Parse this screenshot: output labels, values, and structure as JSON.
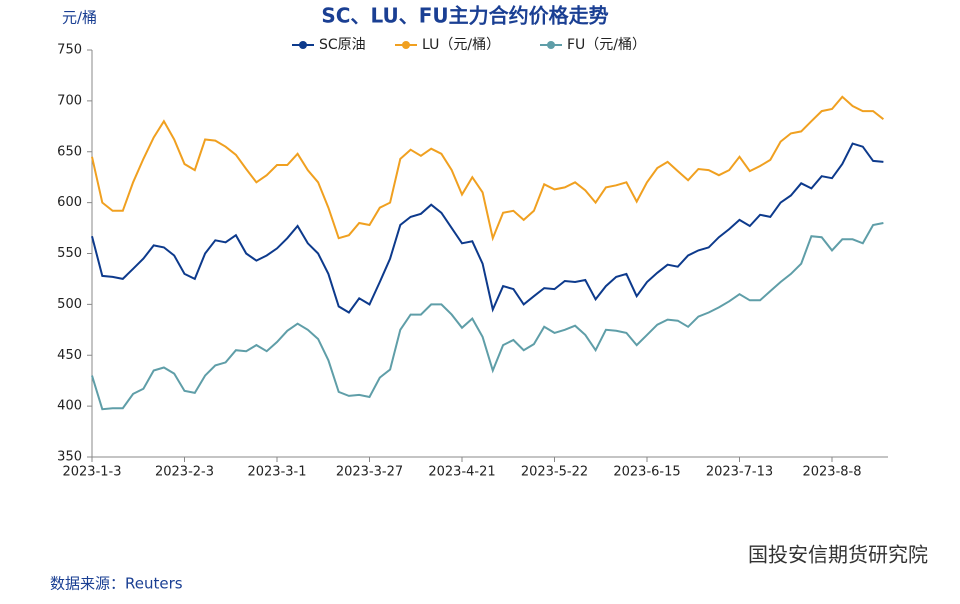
{
  "chart_data": {
    "type": "line",
    "title": "SC、LU、FU主力合约价格走势",
    "y_label": "元/桶",
    "source": "数据来源：Reuters",
    "watermark": "国投安信期货研究院",
    "categories": [
      "2023-1-3",
      null,
      null,
      null,
      null,
      null,
      null,
      null,
      null,
      "2023-2-3",
      null,
      null,
      null,
      null,
      null,
      null,
      null,
      null,
      "2023-3-1",
      null,
      null,
      null,
      null,
      null,
      null,
      null,
      null,
      "2023-3-27",
      null,
      null,
      null,
      null,
      null,
      null,
      null,
      null,
      "2023-4-21",
      null,
      null,
      null,
      null,
      null,
      null,
      null,
      null,
      "2023-5-22",
      null,
      null,
      null,
      null,
      null,
      null,
      null,
      null,
      "2023-6-15",
      null,
      null,
      null,
      null,
      null,
      null,
      null,
      null,
      "2023-7-13",
      null,
      null,
      null,
      null,
      null,
      null,
      null,
      null,
      "2023-8-8",
      null,
      null,
      null,
      null,
      null
    ],
    "ylim": [
      350,
      750
    ],
    "yticks": [
      350,
      400,
      450,
      500,
      550,
      600,
      650,
      700,
      750
    ],
    "grid": false,
    "legend": "top",
    "series": [
      {
        "name": "SC原油",
        "color": "#0d3a8c",
        "values": [
          567,
          528,
          527,
          525,
          535,
          545,
          558,
          556,
          548,
          530,
          525,
          550,
          563,
          561,
          568,
          550,
          543,
          548,
          555,
          565,
          577,
          560,
          550,
          530,
          498,
          492,
          506,
          500,
          522,
          545,
          578,
          586,
          589,
          598,
          590,
          575,
          560,
          562,
          540,
          495,
          518,
          515,
          500,
          508,
          516,
          515,
          523,
          522,
          524,
          505,
          518,
          527,
          530,
          508,
          522,
          531,
          539,
          537,
          548,
          553,
          556,
          566,
          574,
          583,
          577,
          588,
          586,
          600,
          607,
          619,
          614,
          626,
          624,
          638,
          658,
          655,
          641,
          640
        ]
      },
      {
        "name": "LU（元/桶）",
        "color": "#f0a020",
        "values": [
          645,
          600,
          592,
          592,
          620,
          643,
          664,
          680,
          662,
          638,
          632,
          662,
          661,
          655,
          647,
          633,
          620,
          627,
          637,
          637,
          648,
          632,
          620,
          595,
          565,
          568,
          580,
          578,
          595,
          600,
          643,
          652,
          646,
          653,
          648,
          632,
          608,
          625,
          610,
          565,
          590,
          592,
          583,
          592,
          618,
          613,
          615,
          620,
          612,
          600,
          615,
          617,
          620,
          601,
          620,
          634,
          640,
          631,
          622,
          633,
          632,
          627,
          632,
          645,
          631,
          636,
          642,
          660,
          668,
          670,
          680,
          690,
          692,
          704,
          695,
          690,
          690,
          682
        ]
      },
      {
        "name": "FU（元/桶）",
        "color": "#5f9ea8",
        "values": [
          430,
          397,
          398,
          398,
          412,
          417,
          435,
          438,
          432,
          415,
          413,
          430,
          440,
          443,
          455,
          454,
          460,
          454,
          463,
          474,
          481,
          475,
          466,
          445,
          414,
          410,
          411,
          409,
          428,
          436,
          475,
          490,
          490,
          500,
          500,
          490,
          477,
          486,
          468,
          435,
          460,
          465,
          455,
          461,
          478,
          472,
          475,
          479,
          470,
          455,
          475,
          474,
          472,
          460,
          470,
          480,
          485,
          484,
          478,
          488,
          492,
          497,
          503,
          510,
          504,
          504,
          513,
          522,
          530,
          540,
          567,
          566,
          553,
          564,
          564,
          560,
          578,
          580
        ]
      }
    ]
  }
}
